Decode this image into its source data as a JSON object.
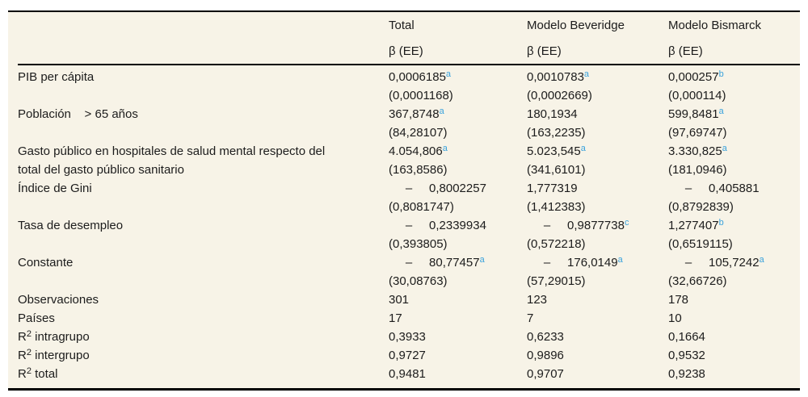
{
  "colors": {
    "page_background": "#ffffff",
    "table_background": "#f7f3e7",
    "text": "#1c1c1c",
    "rule": "#000000",
    "superscript_note": "#3aa2dc"
  },
  "table": {
    "columns": [
      {
        "label": "",
        "sub": ""
      },
      {
        "label": "Total",
        "sub": "β (EE)"
      },
      {
        "label": "Modelo Beveridge",
        "sub": "β (EE)"
      },
      {
        "label": "Modelo Bismarck",
        "sub": "β (EE)"
      }
    ],
    "variable_rows": [
      {
        "label_lines": [
          "PIB per cápita"
        ],
        "cells": [
          {
            "coef": "0,0006185^{a}",
            "se": "(0,0001168)"
          },
          {
            "coef": "0,0010783^{a}",
            "se": "(0,0002669)"
          },
          {
            "coef": "0,000257^{b}",
            "se": "(0,000114)"
          }
        ]
      },
      {
        "label_lines": [
          "Población    > 65 años"
        ],
        "cells": [
          {
            "coef": "367,8748^{a}",
            "se": "(84,28107)"
          },
          {
            "coef": "180,1934",
            "se": "(163,2235)"
          },
          {
            "coef": "599,8481^{a}",
            "se": "(97,69747)"
          }
        ]
      },
      {
        "label_lines": [
          "Gasto público en hospitales de salud mental respecto del",
          "total del gasto público sanitario"
        ],
        "cells": [
          {
            "coef": "4.054,806^{a}",
            "se": "(163,8586)"
          },
          {
            "coef": "5.023,545^{a}",
            "se": "(341,6101)"
          },
          {
            "coef": "3.330,825^{a}",
            "se": "(181,0946)"
          }
        ]
      },
      {
        "label_lines": [
          "Índice de Gini"
        ],
        "cells": [
          {
            "coef": "     –     0,8002257",
            "se": "(0,8081747)"
          },
          {
            "coef": "1,777319",
            "se": "(1,412383)"
          },
          {
            "coef": "     –     0,405881",
            "se": "(0,8792839)"
          }
        ]
      },
      {
        "label_lines": [
          "Tasa de desempleo"
        ],
        "cells": [
          {
            "coef": "     –     0,2339934",
            "se": "(0,393805)"
          },
          {
            "coef": "     –     0,9877738^{c}",
            "se": "(0,572218)"
          },
          {
            "coef": "1,277407^{b}",
            "se": "(0,6519115)"
          }
        ]
      },
      {
        "label_lines": [
          "Constante"
        ],
        "cells": [
          {
            "coef": "     –     80,77457^{a}",
            "se": "(30,08763)"
          },
          {
            "coef": "     –     176,0149^{a}",
            "se": "(57,29015)"
          },
          {
            "coef": "     –     105,7242^{a}",
            "se": "(32,66726)"
          }
        ]
      }
    ],
    "stat_rows": [
      {
        "label": "Observaciones",
        "values": [
          "301",
          "123",
          "178"
        ]
      },
      {
        "label": "Países",
        "values": [
          "17",
          "7",
          "10"
        ]
      },
      {
        "label": "R^{2} intragrupo",
        "values": [
          "0,3933",
          "0,6233",
          "0,1664"
        ]
      },
      {
        "label": "R^{2} intergrupo",
        "values": [
          "0,9727",
          "0,9896",
          "0,9532"
        ]
      },
      {
        "label": "R^{2} total",
        "values": [
          "0,9481",
          "0,9707",
          "0,9238"
        ]
      }
    ]
  }
}
